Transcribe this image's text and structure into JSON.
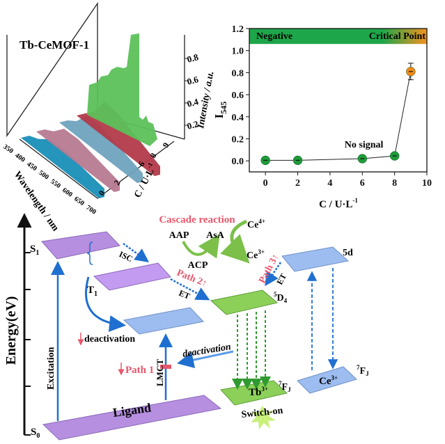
{
  "spectra_3d": {
    "title": "Tb-CeMOF-1",
    "xlabel": "Wavelength / nm",
    "ylabel": "C / U·L",
    "ylabel_sup": "-1",
    "zlabel": "Intensity / a.u.",
    "wavelength_ticks": [
      "350",
      "400",
      "450",
      "500",
      "550",
      "600",
      "650",
      "700"
    ],
    "c_ticks": [
      "0",
      "2",
      "6",
      "8",
      "9"
    ],
    "intensity_ticks": [
      "0.2",
      "0.4",
      "0.6",
      "0.8"
    ],
    "series_colors": [
      "#1a8fb8",
      "#b77a91",
      "#6fa3bf",
      "#b23a4a",
      "#5cc15a"
    ]
  },
  "chart_data": {
    "type": "scatter",
    "xlabel": "C / U·L",
    "xlabel_sup": "-1",
    "ylabel": "I",
    "ylabel_sub": "545",
    "xlim": [
      -1,
      10
    ],
    "ylim": [
      -0.1,
      1.2
    ],
    "xticks": [
      0,
      2,
      4,
      6,
      8,
      10
    ],
    "yticks": [
      0.0,
      0.2,
      0.4,
      0.6,
      0.8,
      1.0,
      1.2
    ],
    "x": [
      0,
      2,
      6,
      8,
      9
    ],
    "y": [
      0.005,
      0.005,
      0.02,
      0.045,
      0.81
    ],
    "error": [
      0,
      0,
      0,
      0,
      0.075
    ],
    "point_colors": [
      "#1f9a3a",
      "#1f9a3a",
      "#1f9a3a",
      "#1f9a3a",
      "#f28a1a"
    ],
    "band": {
      "from": 1.06,
      "to": 1.2,
      "left_label": "Negative",
      "right_label": "Critical Point",
      "color": "#1ea64a",
      "end_color": "#f5921e"
    },
    "annotation": "No signal"
  },
  "diagram": {
    "energy_axis": "Energy(eV)",
    "s1": "S",
    "s1_sub": "1",
    "s0": "S",
    "s0_sub": "0",
    "t1": "T",
    "t1_sub": "1",
    "excitation": "Excitation",
    "isc": "ISC",
    "lmct": "LMCT",
    "ligand": "Ligand",
    "deactivation1": "deactivation",
    "deactivation2": "deactivation",
    "path1": "Path 1",
    "path2": "Path 2",
    "path3": "Path 3",
    "et1": "ET",
    "et2": "ET",
    "cascade": "Cascade reaction",
    "aap": "AAP",
    "asa": "AsA",
    "acp": "ACP",
    "ce4": "Ce",
    "ce4_sup": "4+",
    "ce3": "Ce",
    "ce3_sup": "3+",
    "d4": "D",
    "d4_sup": "5",
    "d4_sub": "4",
    "fj": "F",
    "fj_sup": "7",
    "fj_sub": "J",
    "fj2": "F",
    "fj2_sup": "7",
    "fj2_sub": "J",
    "d5": "5d",
    "tb": "Tb",
    "tb_sup": "3+",
    "ce_level": "Ce",
    "ce_level_sup": "3+",
    "switch_on": "Switch-on",
    "colors": {
      "purple": "#b68fe0",
      "blue": "#9dbdf0",
      "green": "#8cd05a",
      "arrow": "#1f6fd0",
      "red": "#e8566b",
      "dash_green": "#2f9a2f"
    }
  }
}
